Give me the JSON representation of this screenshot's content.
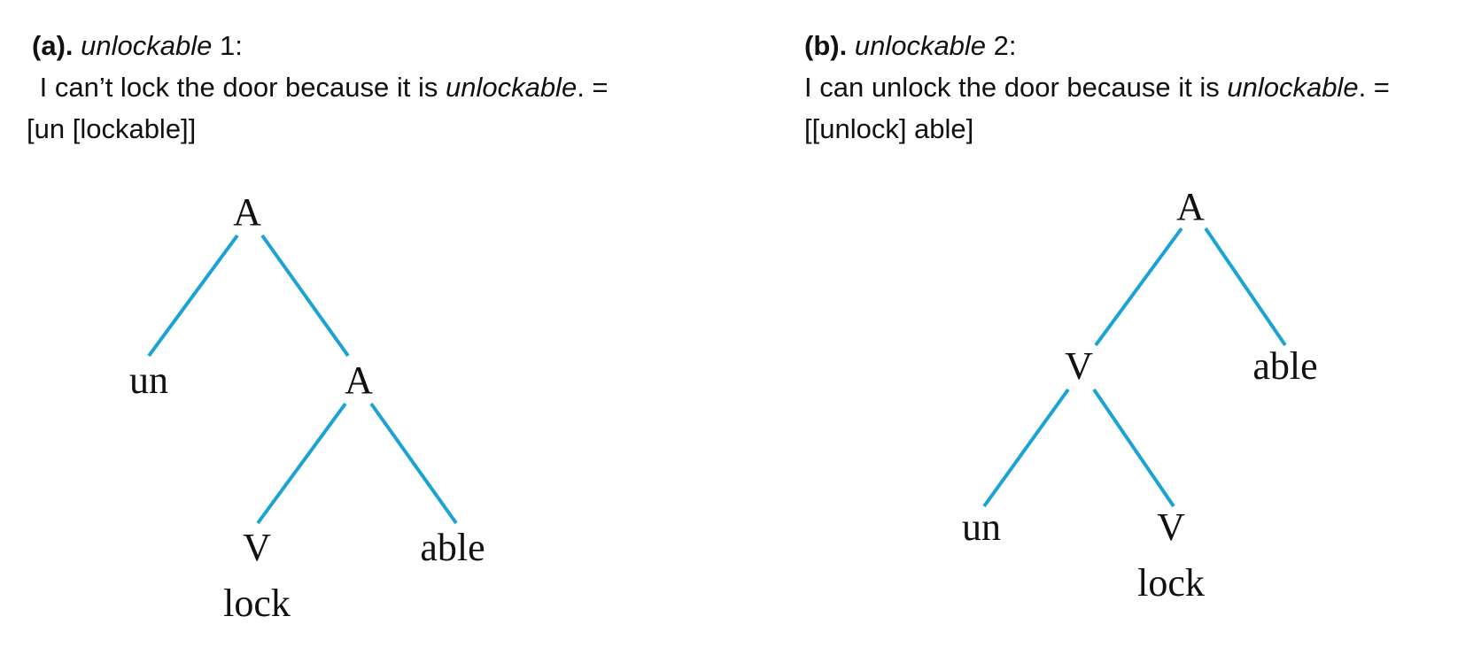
{
  "panel_a": {
    "label": "(a).",
    "word": "unlockable",
    "sense": " 1:",
    "sentence_start": " I can’t lock the door because it is ",
    "sentence_word": "unlockable",
    "sentence_end": ". =",
    "bracketing": "[un [lockable]]",
    "tree": {
      "root": "A",
      "left_leaf": "un",
      "inner": "A",
      "inner_left": "V",
      "inner_right": "able",
      "base_word": "lock"
    }
  },
  "panel_b": {
    "label": "(b).",
    "word": "unlockable",
    "sense": " 2:",
    "sentence_start": "I can unlock the door because it is ",
    "sentence_word": "unlockable",
    "sentence_end": ". =",
    "bracketing": "[[unlock] able]",
    "tree": {
      "root": "A",
      "inner": "V",
      "right_leaf": "able",
      "inner_left": "un",
      "inner_right": "V",
      "base_word": "lock"
    }
  },
  "colors": {
    "branch": "#1ba3d6",
    "text": "#111111"
  }
}
